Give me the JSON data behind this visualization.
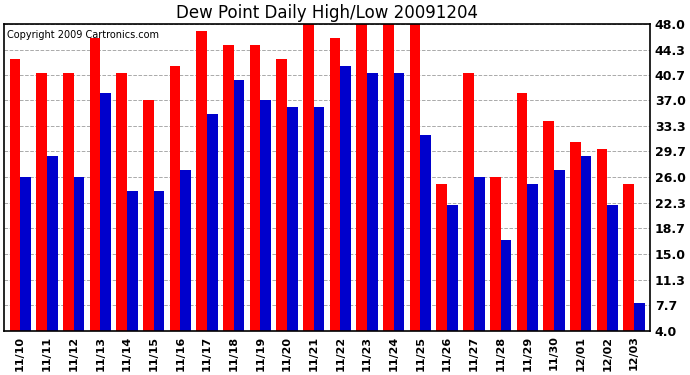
{
  "title": "Dew Point Daily High/Low 20091204",
  "copyright": "Copyright 2009 Cartronics.com",
  "dates": [
    "11/10",
    "11/11",
    "11/12",
    "11/13",
    "11/14",
    "11/15",
    "11/16",
    "11/17",
    "11/18",
    "11/19",
    "11/20",
    "11/21",
    "11/22",
    "11/23",
    "11/24",
    "11/25",
    "11/26",
    "11/27",
    "11/28",
    "11/29",
    "11/30",
    "12/01",
    "12/02",
    "12/03"
  ],
  "highs": [
    43.0,
    41.0,
    41.0,
    46.0,
    41.0,
    37.0,
    42.0,
    47.0,
    45.0,
    45.0,
    43.0,
    48.0,
    46.0,
    48.0,
    48.0,
    48.0,
    25.0,
    41.0,
    26.0,
    38.0,
    34.0,
    31.0,
    30.0,
    25.0
  ],
  "lows": [
    26.0,
    29.0,
    26.0,
    38.0,
    24.0,
    24.0,
    27.0,
    35.0,
    40.0,
    37.0,
    36.0,
    36.0,
    42.0,
    41.0,
    41.0,
    32.0,
    22.0,
    26.0,
    17.0,
    25.0,
    27.0,
    29.0,
    22.0,
    8.0
  ],
  "high_color": "#ff0000",
  "low_color": "#0000cc",
  "bg_color": "#ffffff",
  "plot_bg_color": "#ffffff",
  "grid_color": "#aaaaaa",
  "yticks": [
    4.0,
    7.7,
    11.3,
    15.0,
    18.7,
    22.3,
    26.0,
    29.7,
    33.3,
    37.0,
    40.7,
    44.3,
    48.0
  ],
  "ymin": 4.0,
  "ymax": 48.0,
  "title_fontsize": 12,
  "tick_fontsize": 9,
  "copyright_fontsize": 7
}
